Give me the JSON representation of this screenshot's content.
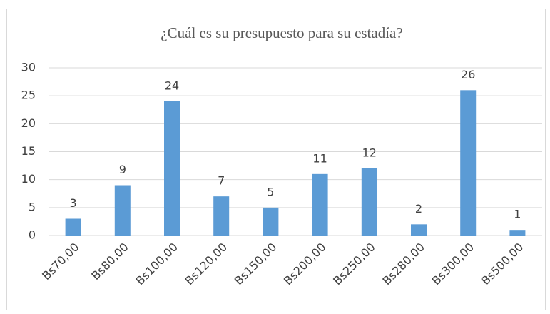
{
  "chart_data": {
    "type": "bar",
    "title": "¿Cuál es su presupuesto para su estadía?",
    "categories": [
      "Bs70,00",
      "Bs80,00",
      "Bs100,00",
      "Bs120,00",
      "Bs150,00",
      "Bs200,00",
      "Bs250,00",
      "Bs280,00",
      "Bs300,00",
      "Bs500,00"
    ],
    "values": [
      3,
      9,
      24,
      7,
      5,
      11,
      12,
      2,
      26,
      1
    ],
    "color": "#5b9bd5",
    "ylim": [
      0,
      30
    ],
    "yticks": [
      0,
      5,
      10,
      15,
      20,
      25,
      30
    ],
    "grid": true,
    "data_labels": true
  }
}
